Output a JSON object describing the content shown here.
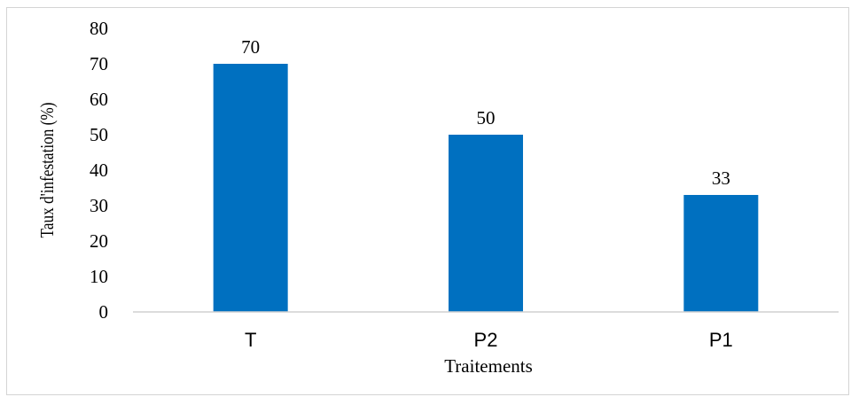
{
  "chart_data": {
    "type": "bar",
    "categories": [
      "T",
      "P2",
      "P1"
    ],
    "values": [
      70,
      50,
      33
    ],
    "data_labels": [
      "70",
      "50",
      "33"
    ],
    "title": "",
    "xlabel": "Traitements",
    "ylabel": "Taux d'infestation (%)",
    "ylim": [
      0,
      80
    ],
    "yticks": [
      "0",
      "10",
      "20",
      "30",
      "40",
      "50",
      "60",
      "70",
      "80"
    ],
    "grid": false,
    "legend": "none",
    "bar_color": "#0070C0"
  }
}
